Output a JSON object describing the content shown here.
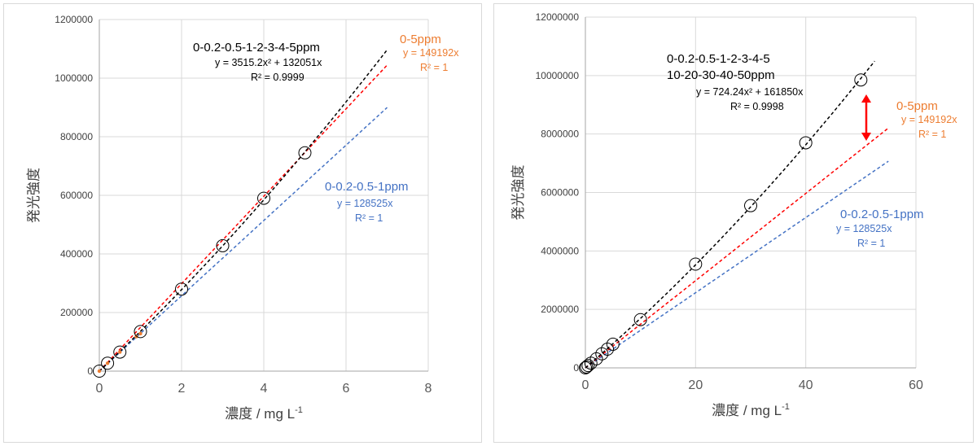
{
  "chart_data": [
    {
      "type": "scatter",
      "xlabel": "濃度 / mg L",
      "xlabel_sup": "-1",
      "ylabel": "発光強度",
      "xlim": [
        0,
        8
      ],
      "ylim": [
        0,
        1200000
      ],
      "x_ticks": [
        "0",
        "2",
        "4",
        "6",
        "8"
      ],
      "y_ticks": [
        "0",
        "200000",
        "400000",
        "600000",
        "800000",
        "1000000",
        "1200000"
      ],
      "grid": true,
      "points": {
        "x": [
          0,
          0.2,
          0.5,
          1,
          2,
          3,
          4,
          5
        ],
        "y": [
          0,
          27000,
          65000,
          135000,
          280000,
          428000,
          590000,
          745000
        ]
      },
      "small_points": {
        "x": [
          0,
          0.2,
          0.5,
          0.9,
          1
        ],
        "y": [
          0,
          27000,
          65000,
          118000,
          128000
        ]
      },
      "series": [
        {
          "name": "0-0.2-0.5-1-2-3-4-5ppm",
          "equation": "y = 3515.2x² + 132051x",
          "r2": "R² = 0.9999",
          "color": "#000000",
          "a": 3515.2,
          "b": 132051,
          "x_end": 7
        },
        {
          "name": "0-5ppm",
          "equation": "y = 149192x",
          "r2": "R² = 1",
          "color": "#ed7d31",
          "line_color": "#ff0000",
          "a": 0,
          "b": 149192,
          "x_end": 7
        },
        {
          "name": "0-0.2-0.5-1ppm",
          "equation": "y = 128525x",
          "r2": "R² = 1",
          "color": "#4472c4",
          "a": 0,
          "b": 128525,
          "x_end": 7
        }
      ]
    },
    {
      "type": "scatter",
      "xlabel": "濃度 / mg L",
      "xlabel_sup": "-1",
      "ylabel": "発光強度",
      "xlim": [
        0,
        60
      ],
      "ylim": [
        0,
        12000000
      ],
      "x_ticks": [
        "0",
        "20",
        "40",
        "60"
      ],
      "y_ticks": [
        "0",
        "2000000",
        "4000000",
        "6000000",
        "8000000",
        "10000000",
        "12000000"
      ],
      "grid": true,
      "points": {
        "x": [
          0,
          0.2,
          0.5,
          1,
          2,
          3,
          4,
          5,
          10,
          20,
          30,
          40,
          50
        ],
        "y": [
          0,
          30000,
          80000,
          160000,
          310000,
          480000,
          640000,
          810000,
          1650000,
          3550000,
          5550000,
          7700000,
          9850000
        ]
      },
      "series": [
        {
          "name_lines": [
            "0-0.2-0.5-1-2-3-4-5",
            "10-20-30-40-50ppm"
          ],
          "equation": "y = 724.24x² + 161850x",
          "r2": "R² = 0.9998",
          "color": "#000000",
          "a": 724.24,
          "b": 161850,
          "x_end": 52.5
        },
        {
          "name": "0-5ppm",
          "equation": "y = 149192x",
          "r2": "R² = 1",
          "color": "#ed7d31",
          "line_color": "#ff0000",
          "a": 0,
          "b": 149192,
          "x_end": 55
        },
        {
          "name": "0-0.2-0.5-1ppm",
          "equation": "y = 128525x",
          "r2": "R² = 1",
          "color": "#4472c4",
          "a": 0,
          "b": 128525,
          "x_end": 55
        }
      ],
      "arrow": {
        "color": "#ff0000"
      }
    }
  ]
}
